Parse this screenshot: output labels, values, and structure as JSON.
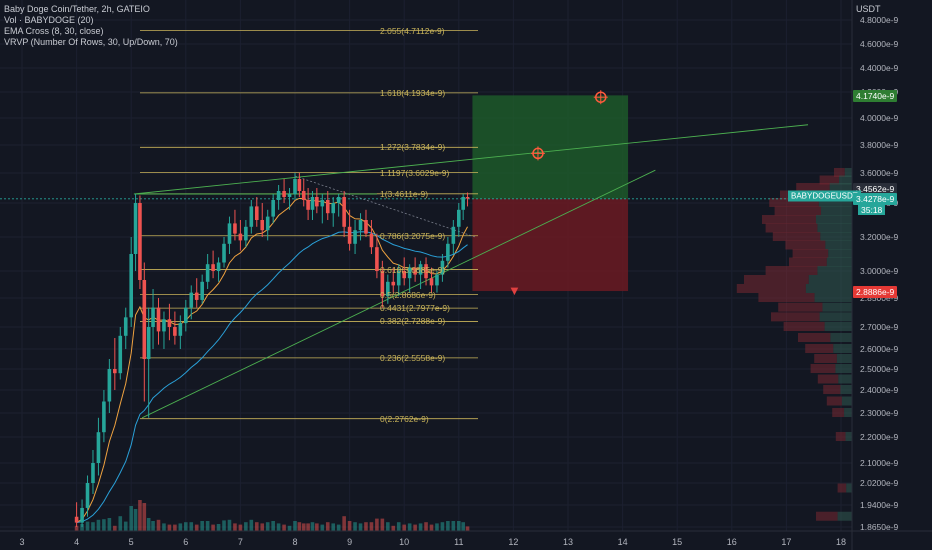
{
  "legend": {
    "title": "Baby Doge Coin/Tether, 2h, GATEIO",
    "vol": "Vol · BABYDOGE (20)",
    "ema": "EMA Cross (8, 30, close)",
    "vrvp": "VRVP (Number Of Rows, 30, Up/Down, 70)"
  },
  "price_axis_title": "USDT",
  "colors": {
    "background": "#131722",
    "up": "#26a69a",
    "down": "#ef5350",
    "fib": "#c9b45a",
    "ema_fast": "#f0a340",
    "ema_slow": "#2aa0d8",
    "trend": "#4caf50",
    "target_zone": "#1e5e2a",
    "stop_zone": "#6b1a22"
  },
  "tags": {
    "target": "4.1740e-9",
    "level_upper": "3.4562e-9",
    "symbol": "BABYDOGEUSDT",
    "last": "3.4278e-9",
    "countdown": "35:18",
    "stop": "2.8886e-9"
  },
  "chart_data": {
    "type": "candlestick",
    "x_ticks": [
      "3",
      "4",
      "5",
      "6",
      "7",
      "8",
      "9",
      "10",
      "11",
      "12",
      "13",
      "14",
      "15",
      "16",
      "17",
      "18"
    ],
    "y_ticks": [
      "4.8000e-9",
      "4.6000e-9",
      "4.4000e-9",
      "4.2000e-9",
      "4.0000e-9",
      "3.8000e-9",
      "3.6000e-9",
      "3.4000e-9",
      "3.2000e-9",
      "3.0000e-9",
      "2.8500e-9",
      "2.7000e-9",
      "2.6000e-9",
      "2.5000e-9",
      "2.4000e-9",
      "2.3000e-9",
      "2.2000e-9",
      "2.1000e-9",
      "2.0200e-9",
      "1.9400e-9",
      "1.8650e-9"
    ],
    "y_tick_values": [
      4.8,
      4.6,
      4.4,
      4.2,
      4.0,
      3.8,
      3.6,
      3.4,
      3.2,
      3.0,
      2.85,
      2.7,
      2.6,
      2.5,
      2.4,
      2.3,
      2.2,
      2.1,
      2.02,
      1.94,
      1.865
    ],
    "fib_levels": [
      {
        "label": "2.055(4.7112e-9)",
        "price": 4.7112
      },
      {
        "label": "1.618(4.1934e-9)",
        "price": 4.1934
      },
      {
        "label": "1.272(3.7834e-9)",
        "price": 3.7834
      },
      {
        "label": "1.1197(3.6029e-9)",
        "price": 3.6029
      },
      {
        "label": "1(3.4611e-9)",
        "price": 3.4611
      },
      {
        "label": "0.786(3.2075e-9)",
        "price": 3.2075
      },
      {
        "label": "0.618(3.0085e-9)",
        "price": 3.0085
      },
      {
        "label": "0.5(2.8686e-9)",
        "price": 2.8686
      },
      {
        "label": "0.4431(2.7977e-9)",
        "price": 2.7977
      },
      {
        "label": "0.382(2.7288e-9)",
        "price": 2.7288
      },
      {
        "label": "0.236(2.5558e-9)",
        "price": 2.5558
      },
      {
        "label": "0(2.2762e-9)",
        "price": 2.2762
      }
    ],
    "position": {
      "entry": 3.4278,
      "target": 4.174,
      "stop": 2.8886,
      "x_start": 11.25,
      "x_end": 14.1
    },
    "candles": [
      [
        4.0,
        1.9,
        1.95,
        1.85,
        1.88
      ],
      [
        4.1,
        1.88,
        1.96,
        1.86,
        1.93
      ],
      [
        4.2,
        1.93,
        2.05,
        1.9,
        2.02
      ],
      [
        4.3,
        2.02,
        2.15,
        1.98,
        2.1
      ],
      [
        4.4,
        2.1,
        2.28,
        2.05,
        2.22
      ],
      [
        4.5,
        2.22,
        2.4,
        2.18,
        2.35
      ],
      [
        4.6,
        2.35,
        2.55,
        2.3,
        2.5
      ],
      [
        4.7,
        2.5,
        2.65,
        2.4,
        2.48
      ],
      [
        4.8,
        2.48,
        2.7,
        2.45,
        2.66
      ],
      [
        4.9,
        2.66,
        2.8,
        2.6,
        2.75
      ],
      [
        5.0,
        2.75,
        3.2,
        2.7,
        3.1
      ],
      [
        5.08,
        3.1,
        3.46,
        3.0,
        3.4
      ],
      [
        5.16,
        3.4,
        3.45,
        2.9,
        2.95
      ],
      [
        5.24,
        2.95,
        3.05,
        2.35,
        2.55
      ],
      [
        5.32,
        2.55,
        2.8,
        2.28,
        2.7
      ],
      [
        5.4,
        2.7,
        2.9,
        2.6,
        2.8
      ],
      [
        5.5,
        2.8,
        2.85,
        2.62,
        2.68
      ],
      [
        5.6,
        2.68,
        2.78,
        2.6,
        2.74
      ],
      [
        5.7,
        2.74,
        2.82,
        2.64,
        2.7
      ],
      [
        5.8,
        2.7,
        2.78,
        2.62,
        2.66
      ],
      [
        5.9,
        2.66,
        2.76,
        2.6,
        2.72
      ],
      [
        6.0,
        2.72,
        2.84,
        2.68,
        2.8
      ],
      [
        6.1,
        2.8,
        2.92,
        2.74,
        2.88
      ],
      [
        6.2,
        2.88,
        2.96,
        2.8,
        2.84
      ],
      [
        6.3,
        2.84,
        2.98,
        2.82,
        2.94
      ],
      [
        6.4,
        2.94,
        3.1,
        2.9,
        3.04
      ],
      [
        6.5,
        3.04,
        3.12,
        2.96,
        3.0
      ],
      [
        6.6,
        3.0,
        3.08,
        2.94,
        3.05
      ],
      [
        6.7,
        3.05,
        3.2,
        3.02,
        3.16
      ],
      [
        6.8,
        3.16,
        3.32,
        3.1,
        3.28
      ],
      [
        6.9,
        3.28,
        3.36,
        3.18,
        3.22
      ],
      [
        7.0,
        3.22,
        3.3,
        3.12,
        3.18
      ],
      [
        7.1,
        3.18,
        3.3,
        3.14,
        3.26
      ],
      [
        7.2,
        3.26,
        3.42,
        3.22,
        3.38
      ],
      [
        7.3,
        3.38,
        3.44,
        3.26,
        3.3
      ],
      [
        7.4,
        3.3,
        3.4,
        3.2,
        3.24
      ],
      [
        7.5,
        3.24,
        3.36,
        3.18,
        3.32
      ],
      [
        7.6,
        3.32,
        3.46,
        3.28,
        3.42
      ],
      [
        7.7,
        3.42,
        3.52,
        3.36,
        3.48
      ],
      [
        7.8,
        3.48,
        3.56,
        3.4,
        3.44
      ],
      [
        7.9,
        3.44,
        3.5,
        3.36,
        3.46
      ],
      [
        8.0,
        3.46,
        3.6,
        3.42,
        3.56
      ],
      [
        8.08,
        3.56,
        3.6,
        3.44,
        3.48
      ],
      [
        8.16,
        3.48,
        3.56,
        3.38,
        3.42
      ],
      [
        8.24,
        3.42,
        3.5,
        3.3,
        3.36
      ],
      [
        8.32,
        3.36,
        3.48,
        3.3,
        3.44
      ],
      [
        8.4,
        3.44,
        3.5,
        3.34,
        3.38
      ],
      [
        8.5,
        3.38,
        3.46,
        3.28,
        3.42
      ],
      [
        8.6,
        3.42,
        3.48,
        3.3,
        3.34
      ],
      [
        8.7,
        3.34,
        3.44,
        3.26,
        3.4
      ],
      [
        8.8,
        3.4,
        3.46,
        3.32,
        3.44
      ],
      [
        8.9,
        3.44,
        3.48,
        3.2,
        3.26
      ],
      [
        9.0,
        3.26,
        3.36,
        3.12,
        3.16
      ],
      [
        9.1,
        3.16,
        3.3,
        3.1,
        3.24
      ],
      [
        9.2,
        3.24,
        3.34,
        3.18,
        3.3
      ],
      [
        9.3,
        3.3,
        3.36,
        3.2,
        3.22
      ],
      [
        9.4,
        3.22,
        3.3,
        3.1,
        3.14
      ],
      [
        9.5,
        3.14,
        3.22,
        2.96,
        3.0
      ],
      [
        9.6,
        3.0,
        3.06,
        2.8,
        2.86
      ],
      [
        9.7,
        2.86,
        2.98,
        2.82,
        2.94
      ],
      [
        9.8,
        2.94,
        3.02,
        2.88,
        2.92
      ],
      [
        9.9,
        2.92,
        3.04,
        2.86,
        3.0
      ],
      [
        10.0,
        3.0,
        3.08,
        2.92,
        2.96
      ],
      [
        10.1,
        2.96,
        3.04,
        2.88,
        3.02
      ],
      [
        10.2,
        3.02,
        3.08,
        2.94,
        2.98
      ],
      [
        10.3,
        2.98,
        3.06,
        2.9,
        3.04
      ],
      [
        10.4,
        3.04,
        3.08,
        2.92,
        2.96
      ],
      [
        10.5,
        2.96,
        3.02,
        2.88,
        2.92
      ],
      [
        10.6,
        2.92,
        3.0,
        2.88,
        2.98
      ],
      [
        10.7,
        2.98,
        3.1,
        2.94,
        3.06
      ],
      [
        10.8,
        3.06,
        3.2,
        3.02,
        3.16
      ],
      [
        10.9,
        3.16,
        3.3,
        3.1,
        3.26
      ],
      [
        11.0,
        3.26,
        3.4,
        3.2,
        3.36
      ],
      [
        11.08,
        3.36,
        3.46,
        3.3,
        3.44
      ],
      [
        11.16,
        3.44,
        3.47,
        3.38,
        3.43
      ]
    ],
    "volume_profile": [
      {
        "price": 3.6,
        "vol": 20
      },
      {
        "price": 3.55,
        "vol": 36
      },
      {
        "price": 3.5,
        "vol": 62
      },
      {
        "price": 3.45,
        "vol": 80
      },
      {
        "price": 3.4,
        "vol": 92
      },
      {
        "price": 3.35,
        "vol": 86
      },
      {
        "price": 3.3,
        "vol": 100
      },
      {
        "price": 3.25,
        "vol": 96
      },
      {
        "price": 3.2,
        "vol": 88
      },
      {
        "price": 3.15,
        "vol": 74
      },
      {
        "price": 3.1,
        "vol": 66
      },
      {
        "price": 3.05,
        "vol": 70
      },
      {
        "price": 3.0,
        "vol": 96
      },
      {
        "price": 2.95,
        "vol": 120
      },
      {
        "price": 2.9,
        "vol": 128
      },
      {
        "price": 2.85,
        "vol": 104
      },
      {
        "price": 2.8,
        "vol": 82
      },
      {
        "price": 2.75,
        "vol": 90
      },
      {
        "price": 2.7,
        "vol": 76
      },
      {
        "price": 2.65,
        "vol": 60
      },
      {
        "price": 2.6,
        "vol": 52
      },
      {
        "price": 2.55,
        "vol": 42
      },
      {
        "price": 2.5,
        "vol": 46
      },
      {
        "price": 2.45,
        "vol": 38
      },
      {
        "price": 2.4,
        "vol": 32
      },
      {
        "price": 2.35,
        "vol": 28
      },
      {
        "price": 2.3,
        "vol": 22
      },
      {
        "price": 2.2,
        "vol": 18
      },
      {
        "price": 2.0,
        "vol": 16
      },
      {
        "price": 1.9,
        "vol": 40
      }
    ]
  }
}
